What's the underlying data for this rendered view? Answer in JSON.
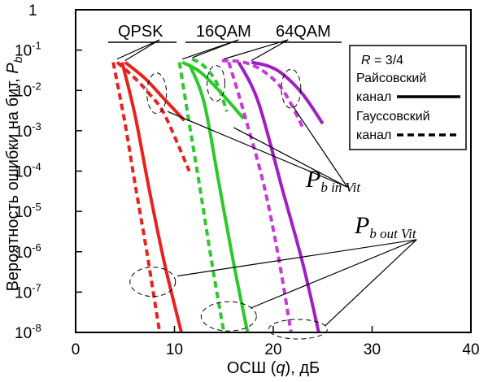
{
  "chart_data": {
    "type": "line",
    "xlabel": "ОСШ (q), дБ",
    "ylabel": "Вероятность ошибки на бит, P_b",
    "xlim": [
      0,
      40
    ],
    "ylim": [
      1e-08,
      1
    ],
    "yscale": "log",
    "xticks": [
      "0",
      "10",
      "20",
      "30",
      "40"
    ],
    "yticks": [
      {
        "value": 1,
        "label": "1"
      },
      {
        "value": 0.1,
        "label": "10⁻¹"
      },
      {
        "value": 0.01,
        "label": "10⁻²"
      },
      {
        "value": 0.001,
        "label": "10⁻³"
      },
      {
        "value": 0.0001,
        "label": "10⁻⁴"
      },
      {
        "value": 1e-05,
        "label": "10⁻⁵"
      },
      {
        "value": 1e-06,
        "label": "10⁻⁶"
      },
      {
        "value": 1e-07,
        "label": "10⁻⁷"
      },
      {
        "value": 1e-08,
        "label": "10⁻⁸"
      }
    ],
    "grid": false,
    "legend_position": "top-right",
    "legend": {
      "title": "R = 3/4",
      "items": [
        {
          "label_line1": "Райсовский",
          "label_line2": "канал",
          "style": "solid"
        },
        {
          "label_line1": "Гауссовский",
          "label_line2": "канал",
          "style": "dashed"
        }
      ]
    },
    "modulation_labels": [
      "QPSK",
      "16QAM",
      "64QAM"
    ],
    "annotations": {
      "in_vit": {
        "main": "P",
        "sub": "b in Vit"
      },
      "out_vit": {
        "main": "P",
        "sub": "b out Vit"
      }
    },
    "series": [
      {
        "modulation": "QPSK",
        "channel": "rice",
        "color": "#e8231f",
        "dash": false,
        "points": [
          [
            5,
            0.05
          ],
          [
            7,
            0.02
          ],
          [
            9,
            0.006
          ],
          [
            11,
            0.0018
          ]
        ]
      },
      {
        "modulation": "QPSK",
        "channel": "rice",
        "color": "#e8231f",
        "dash": false,
        "points": [
          [
            4.7,
            0.05
          ],
          [
            6,
            0.0025
          ],
          [
            7.5,
            3e-05
          ],
          [
            9,
            5e-07
          ],
          [
            10.7,
            1e-08
          ]
        ]
      },
      {
        "modulation": "QPSK",
        "channel": "gauss",
        "color": "#e8231f",
        "dash": true,
        "points": [
          [
            4.2,
            0.05
          ],
          [
            6,
            0.02
          ],
          [
            7.5,
            0.008
          ],
          [
            9,
            0.0025
          ],
          [
            11.5,
            0.0001
          ]
        ]
      },
      {
        "modulation": "QPSK",
        "channel": "gauss",
        "color": "#e8231f",
        "dash": true,
        "points": [
          [
            3.8,
            0.05
          ],
          [
            5,
            0.0015
          ],
          [
            6,
            5e-05
          ],
          [
            7.2,
            1e-06
          ],
          [
            8.5,
            1e-08
          ]
        ]
      },
      {
        "modulation": "16QAM",
        "channel": "rice",
        "color": "#2dc82d",
        "dash": false,
        "points": [
          [
            10.8,
            0.05
          ],
          [
            12.5,
            0.03
          ],
          [
            14.5,
            0.01
          ],
          [
            17,
            0.002
          ]
        ]
      },
      {
        "modulation": "16QAM",
        "channel": "rice",
        "color": "#2dc82d",
        "dash": false,
        "points": [
          [
            11.5,
            0.045
          ],
          [
            13,
            0.005
          ],
          [
            14.5,
            5e-05
          ],
          [
            16,
            5e-07
          ],
          [
            17.4,
            1e-08
          ]
        ]
      },
      {
        "modulation": "16QAM",
        "channel": "gauss",
        "color": "#2dc82d",
        "dash": true,
        "points": [
          [
            11.8,
            0.06
          ],
          [
            13,
            0.04
          ],
          [
            14.3,
            0.015
          ],
          [
            15.3,
            0.003
          ]
        ]
      },
      {
        "modulation": "16QAM",
        "channel": "gauss",
        "color": "#2dc82d",
        "dash": true,
        "points": [
          [
            10.5,
            0.05
          ],
          [
            11.5,
            0.0015
          ],
          [
            12.5,
            5e-05
          ],
          [
            13.8,
            5e-07
          ],
          [
            15,
            1e-08
          ]
        ]
      },
      {
        "modulation": "64QAM",
        "channel": "rice",
        "color": "#a01fc4",
        "dash": false,
        "points": [
          [
            17.8,
            0.05
          ],
          [
            19.5,
            0.04
          ],
          [
            21,
            0.025
          ],
          [
            23,
            0.008
          ],
          [
            25,
            0.0015
          ]
        ]
      },
      {
        "modulation": "64QAM",
        "channel": "rice",
        "color": "#a01fc4",
        "dash": false,
        "points": [
          [
            16.5,
            0.05
          ],
          [
            18.5,
            0.005
          ],
          [
            21,
            3e-05
          ],
          [
            23,
            5e-07
          ],
          [
            24.6,
            1e-08
          ]
        ]
      },
      {
        "modulation": "64QAM",
        "channel": "gauss",
        "color": "#c53bd6",
        "dash": true,
        "points": [
          [
            14.8,
            0.055
          ],
          [
            17,
            0.05
          ],
          [
            19,
            0.03
          ],
          [
            21,
            0.01
          ],
          [
            23,
            0.0012
          ]
        ]
      },
      {
        "modulation": "64QAM",
        "channel": "gauss",
        "color": "#c53bd6",
        "dash": true,
        "points": [
          [
            15.5,
            0.05
          ],
          [
            17,
            0.003
          ],
          [
            19,
            5e-05
          ],
          [
            20.5,
            8e-07
          ],
          [
            21.8,
            1e-08
          ]
        ]
      }
    ]
  }
}
